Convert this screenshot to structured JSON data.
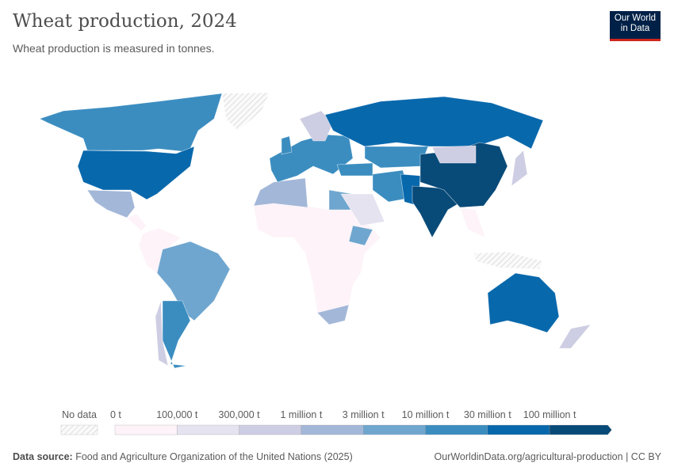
{
  "header": {
    "title": "Wheat production, 2024",
    "subtitle": "Wheat production is measured in tonnes."
  },
  "logo": {
    "line1": "Our World",
    "line2": "in Data",
    "bg_color": "#002147",
    "accent_color": "#ce261e"
  },
  "legend": {
    "no_data_label": "No data",
    "tick_labels": [
      "0 t",
      "100,000 t",
      "300,000 t",
      "1 million t",
      "3 million t",
      "10 million t",
      "30 million t",
      "100 million t"
    ],
    "bin_colors": [
      "#fdf3f8",
      "#e6e3f0",
      "#cdcde3",
      "#a3b7d8",
      "#6fa6cf",
      "#3b8dc0",
      "#0868ac",
      "#084a78"
    ]
  },
  "map_data": {
    "Canada": 5,
    "United States": 6,
    "Greenland": -1,
    "Mexico": 3,
    "Central America": 0,
    "Northern South America": 0,
    "Brazil": 4,
    "Argentina": 5,
    "Chile": 2,
    "Africa (other)": 0,
    "Morocco and Algeria": 3,
    "Egypt": 4,
    "Ethiopia": 4,
    "South Africa": 3,
    "Western Europe": 5,
    "Scandinavia": 2,
    "United Kingdom": 5,
    "Russia": 6,
    "Kazakhstan": 5,
    "Turkey": 5,
    "Iran": 5,
    "Saudi Arabia": 1,
    "Pakistan": 6,
    "India": 7,
    "China": 7,
    "Mongolia": 2,
    "Southeast Asia": 0,
    "Indonesia": -1,
    "Japan": 2,
    "Australia": 6,
    "New Zealand": 2
  },
  "footer": {
    "source_label": "Data source:",
    "source_text": "Food and Agriculture Organization of the United Nations (2025)",
    "url": "OurWorldinData.org/agricultural-production",
    "license": "CC BY"
  }
}
